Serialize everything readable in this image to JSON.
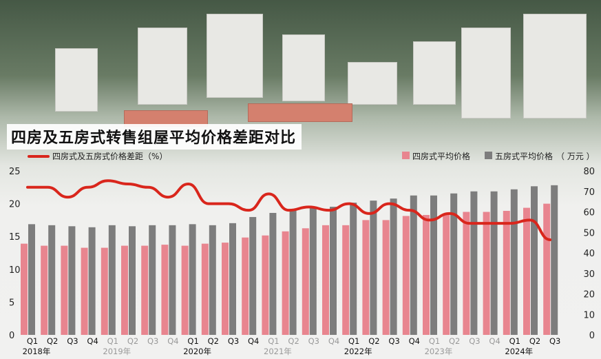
{
  "title": "四房及五房式转售组屋平均价格差距对比",
  "legend": {
    "line_label": "四房式及五房式价格差距（%）",
    "bar4_label": "四房式平均价格",
    "bar5_label": "五房式平均价格",
    "unit_label": "（ 万元 ）"
  },
  "colors": {
    "bar4": "#e8858f",
    "bar5": "#7d7d7d",
    "line": "#d9261c"
  },
  "chart_data": {
    "type": "bar",
    "title": "四房及五房式转售组屋平均价格差距对比",
    "categories": [
      "Q1",
      "Q2",
      "Q3",
      "Q4",
      "Q1",
      "Q2",
      "Q3",
      "Q4",
      "Q1",
      "Q2",
      "Q3",
      "Q4",
      "Q1",
      "Q2",
      "Q3",
      "Q4",
      "Q1",
      "Q2",
      "Q3",
      "Q4",
      "Q1",
      "Q2",
      "Q3",
      "Q4",
      "Q1",
      "Q2",
      "Q3"
    ],
    "category_faded": [
      false,
      false,
      false,
      false,
      true,
      true,
      true,
      true,
      false,
      false,
      false,
      false,
      true,
      true,
      true,
      true,
      false,
      false,
      false,
      false,
      true,
      true,
      true,
      true,
      false,
      false,
      false
    ],
    "year_labels": [
      {
        "label": "2018年",
        "start": 0,
        "end": 3,
        "faded": false
      },
      {
        "label": "2019年",
        "start": 4,
        "end": 7,
        "faded": true
      },
      {
        "label": "2020年",
        "start": 8,
        "end": 11,
        "faded": false
      },
      {
        "label": "2021年",
        "start": 12,
        "end": 15,
        "faded": true
      },
      {
        "label": "2022年",
        "start": 16,
        "end": 19,
        "faded": false
      },
      {
        "label": "2023年",
        "start": 20,
        "end": 23,
        "faded": true
      },
      {
        "label": "2024年",
        "start": 24,
        "end": 26,
        "faded": false
      }
    ],
    "series": [
      {
        "name": "四房式平均价格",
        "axis": "right",
        "kind": "bar",
        "values": [
          44.5,
          43.5,
          43.5,
          42.5,
          42.5,
          43.5,
          43.5,
          44,
          43.5,
          44.5,
          45,
          47.5,
          48.5,
          50.5,
          52,
          53.5,
          53.5,
          56,
          56,
          58,
          58.5,
          59,
          60,
          60,
          60.5,
          62,
          64
        ]
      },
      {
        "name": "五房式平均价格",
        "axis": "right",
        "kind": "bar",
        "values": [
          54,
          53.5,
          53,
          52.5,
          53.5,
          53,
          53.5,
          53.5,
          54,
          53.5,
          54.5,
          57.5,
          59.5,
          61,
          62,
          62.5,
          64.5,
          65.5,
          66.5,
          68,
          68,
          69,
          70,
          70,
          71,
          72.5,
          73
        ]
      },
      {
        "name": "四房式及五房式价格差距（%）",
        "axis": "left",
        "kind": "line",
        "values": [
          22.5,
          22.5,
          21,
          22.5,
          23.5,
          23,
          22.5,
          21,
          23,
          20,
          20,
          19,
          21.5,
          19,
          19.5,
          19,
          20,
          18.5,
          20,
          19,
          17.5,
          18.5,
          17,
          17,
          17,
          17.5,
          14.5
        ]
      }
    ],
    "y_left": {
      "min": 0,
      "max": 25,
      "ticks": [
        0,
        5,
        10,
        15,
        20,
        25
      ]
    },
    "y_right": {
      "min": 0,
      "max": 80,
      "ticks": [
        0,
        10,
        20,
        30,
        40,
        50,
        60,
        70,
        80
      ]
    },
    "legend_position": "top",
    "grid": false
  }
}
